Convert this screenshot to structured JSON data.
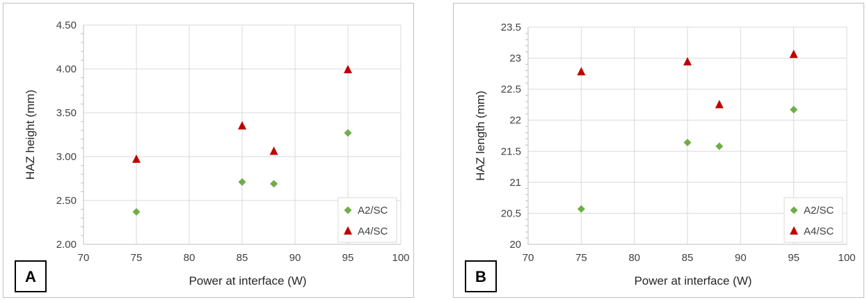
{
  "chart_data": [
    {
      "type": "scatter",
      "panel_label": "A",
      "xlabel": "Power at interface (W)",
      "ylabel": "HAZ height (mm)",
      "xlim": [
        70,
        100
      ],
      "ylim": [
        2.0,
        4.5
      ],
      "x_ticks": [
        "70",
        "75",
        "80",
        "85",
        "90",
        "95",
        "100"
      ],
      "y_ticks": [
        "2.00",
        "2.50",
        "3.00",
        "3.50",
        "4.00",
        "4.50"
      ],
      "grid": true,
      "legend_position": "bottom-right",
      "series": [
        {
          "name": "A2/SC",
          "marker": "diamond",
          "color": "#70ad47",
          "points": [
            [
              75,
              2.37
            ],
            [
              85,
              2.71
            ],
            [
              88,
              2.69
            ],
            [
              95,
              3.27
            ]
          ]
        },
        {
          "name": "A4/SC",
          "marker": "triangle",
          "color": "#c00000",
          "points": [
            [
              75,
              2.97
            ],
            [
              85,
              3.35
            ],
            [
              88,
              3.06
            ],
            [
              95,
              3.99
            ]
          ]
        }
      ]
    },
    {
      "type": "scatter",
      "panel_label": "B",
      "xlabel": "Power at interface (W)",
      "ylabel": "HAZ length (mm)",
      "xlim": [
        70,
        100
      ],
      "ylim": [
        20,
        23.5
      ],
      "x_ticks": [
        "70",
        "75",
        "80",
        "85",
        "90",
        "95",
        "100"
      ],
      "y_ticks": [
        "20",
        "20.5",
        "21",
        "21.5",
        "22",
        "22.5",
        "23",
        "23.5"
      ],
      "grid": true,
      "legend_position": "bottom-right",
      "series": [
        {
          "name": "A2/SC",
          "marker": "diamond",
          "color": "#70ad47",
          "points": [
            [
              75,
              20.57
            ],
            [
              85,
              21.64
            ],
            [
              88,
              21.58
            ],
            [
              95,
              22.17
            ]
          ]
        },
        {
          "name": "A4/SC",
          "marker": "triangle",
          "color": "#c00000",
          "points": [
            [
              75,
              22.78
            ],
            [
              85,
              22.94
            ],
            [
              88,
              22.25
            ],
            [
              95,
              23.06
            ]
          ]
        }
      ]
    }
  ]
}
